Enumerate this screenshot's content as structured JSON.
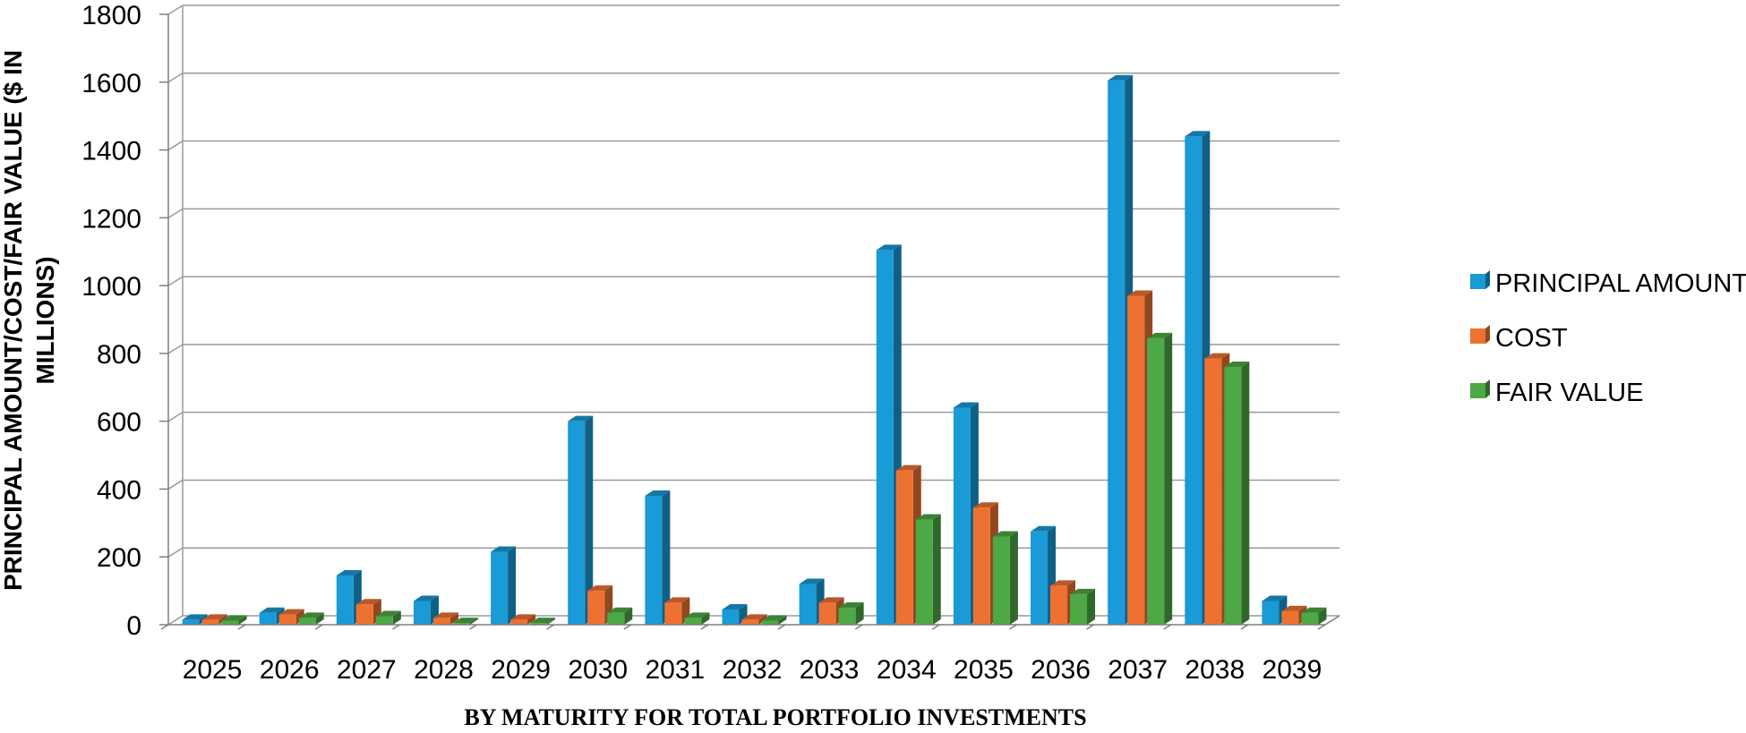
{
  "chart_data": {
    "type": "bar",
    "categories": [
      "2025",
      "2026",
      "2027",
      "2028",
      "2029",
      "2030",
      "2031",
      "2032",
      "2033",
      "2034",
      "2035",
      "2036",
      "2037",
      "2038",
      "2039"
    ],
    "series": [
      {
        "name": "PRINCIPAL AMOUNT",
        "color": "#1a9ad6",
        "values": [
          15,
          35,
          145,
          70,
          215,
          600,
          380,
          45,
          120,
          1105,
          640,
          275,
          1605,
          1440,
          70
        ]
      },
      {
        "name": "COST",
        "color": "#ed7232",
        "values": [
          15,
          30,
          60,
          20,
          15,
          100,
          65,
          15,
          65,
          455,
          345,
          115,
          970,
          785,
          40
        ]
      },
      {
        "name": "FAIR VALUE",
        "color": "#4ea845",
        "values": [
          12,
          20,
          25,
          5,
          5,
          35,
          20,
          12,
          50,
          310,
          260,
          90,
          845,
          760,
          35
        ]
      }
    ],
    "ylim": [
      0,
      1800
    ],
    "yticks": [
      "0",
      "200",
      "400",
      "600",
      "800",
      "1000",
      "1200",
      "1400",
      "1600",
      "1800"
    ],
    "xlabel": "BY MATURITY FOR TOTAL PORTFOLIO INVESTMENTS",
    "ylabel_lines": [
      "PRINCIPAL AMOUNT/COST/FAIR VALUE ($ IN",
      "MILLIONS)"
    ],
    "grid": true,
    "legend_position": "right"
  }
}
